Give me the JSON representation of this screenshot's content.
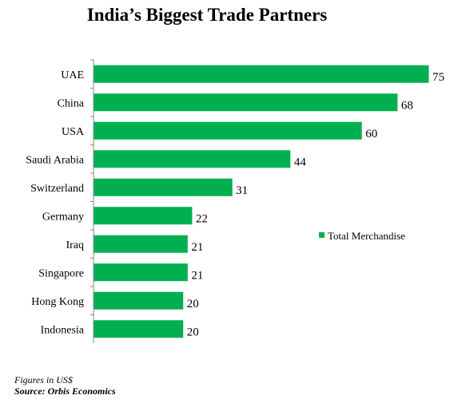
{
  "chart_data": {
    "type": "bar",
    "orientation": "horizontal",
    "title": "India’s Biggest Trade Partners",
    "categories": [
      "UAE",
      "China",
      "USA",
      "Saudi Arabia",
      "Switzerland",
      "Germany",
      "Iraq",
      "Singapore",
      "Hong Kong",
      "Indonesia"
    ],
    "series": [
      {
        "name": "Total Merchandise",
        "values": [
          75,
          68,
          60,
          44,
          31,
          22,
          21,
          21,
          20,
          20
        ],
        "color": "#00B050"
      }
    ],
    "xlim": [
      0,
      75
    ],
    "grid": false,
    "legend_position": "right",
    "data_labels": true
  },
  "notes": {
    "figures": "Figures in US$",
    "source": "Source: Orbis Economics"
  }
}
